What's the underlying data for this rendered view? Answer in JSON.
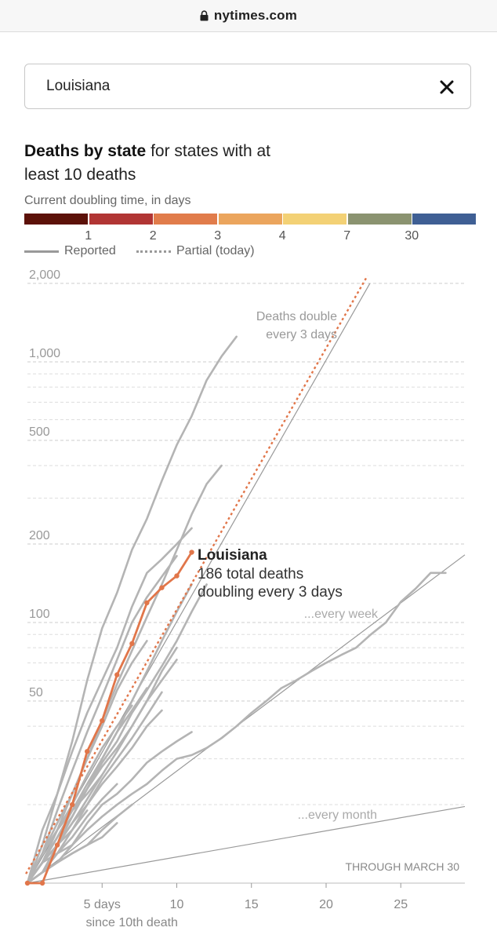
{
  "browser": {
    "url": "nytimes.com"
  },
  "search": {
    "value": "Louisiana"
  },
  "header": {
    "title_bold": "Deaths by state",
    "title_rest": " for states with at least 10 deaths"
  },
  "legend": {
    "doubling_label": "Current doubling time, in days",
    "colors": [
      "#5c1109",
      "#b13534",
      "#e17c4b",
      "#eba55d",
      "#f3d175",
      "#8b9370",
      "#3f5f94"
    ],
    "ticks": [
      "1",
      "2",
      "3",
      "4",
      "7",
      "30"
    ],
    "reported_label": "Reported",
    "partial_label": "Partial (today)"
  },
  "chart_data": {
    "type": "line",
    "x_axis": {
      "ticks": [
        5,
        10,
        15,
        20,
        25
      ],
      "label": "since 10th death",
      "first_tick_suffix": " days",
      "range": [
        0,
        30
      ]
    },
    "y_axis": {
      "scale": "log",
      "range": [
        10,
        2000
      ],
      "tick_labels": [
        {
          "value": 2000,
          "label": "2,000"
        },
        {
          "value": 1000,
          "label": "1,000"
        },
        {
          "value": 500,
          "label": "500"
        },
        {
          "value": 200,
          "label": "200"
        },
        {
          "value": 100,
          "label": "100"
        },
        {
          "value": 50,
          "label": "50"
        }
      ]
    },
    "grid": true,
    "reference_lines": [
      {
        "label": "Deaths double every 3 days",
        "label_lines": [
          "Deaths double",
          "every 3 days"
        ],
        "doubling_days": 3
      },
      {
        "label": "...every week",
        "doubling_days": 7
      },
      {
        "label": "...every month",
        "doubling_days": 30
      }
    ],
    "highlight": {
      "name": "Louisiana",
      "line1": "186 total deaths",
      "line2": "doubling every 3 days",
      "color": "#e1764a",
      "x": [
        0,
        1,
        2,
        3,
        4,
        5,
        6,
        7,
        8,
        9,
        10,
        11
      ],
      "y": [
        10,
        10,
        14,
        20,
        32,
        42,
        63,
        83,
        119,
        136,
        151,
        186
      ],
      "partial_projection_doubling_days": 3
    },
    "other_series": [
      {
        "x": [
          0,
          1,
          2,
          3,
          4,
          5,
          6,
          7,
          8,
          9,
          10,
          11,
          12,
          13,
          14
        ],
        "y": [
          10,
          16,
          22,
          35,
          60,
          95,
          130,
          190,
          250,
          350,
          480,
          620,
          850,
          1050,
          1250
        ]
      },
      {
        "x": [
          0,
          1,
          2,
          3,
          4,
          5,
          6,
          7,
          8,
          9,
          10,
          11
        ],
        "y": [
          10,
          14,
          22,
          32,
          45,
          60,
          80,
          115,
          155,
          175,
          200,
          230
        ]
      },
      {
        "x": [
          0,
          1,
          2,
          3,
          4,
          5,
          6,
          7,
          8,
          9,
          10
        ],
        "y": [
          10,
          13,
          19,
          27,
          38,
          52,
          72,
          100,
          125,
          150,
          180
        ]
      },
      {
        "x": [
          0,
          1,
          2,
          3,
          4,
          5,
          6,
          7,
          8,
          9,
          10,
          11,
          12,
          13,
          14,
          15,
          16,
          17,
          18,
          19,
          20,
          21,
          22,
          23,
          24,
          25,
          26,
          27,
          28
        ],
        "y": [
          10,
          11,
          12,
          14,
          16,
          18,
          20,
          22,
          24,
          27,
          30,
          31,
          33,
          36,
          40,
          45,
          50,
          56,
          60,
          65,
          70,
          75,
          80,
          90,
          100,
          120,
          135,
          155,
          155
        ]
      },
      {
        "x": [
          0,
          1,
          2,
          3,
          4,
          5,
          6,
          7,
          8,
          9,
          10,
          11,
          12
        ],
        "y": [
          10,
          12,
          15,
          19,
          23,
          29,
          35,
          45,
          55,
          68,
          85,
          110,
          140
        ]
      },
      {
        "x": [
          0,
          1,
          2,
          3,
          4,
          5,
          6,
          7,
          8,
          9,
          10
        ],
        "y": [
          10,
          12,
          15,
          18,
          23,
          28,
          33,
          40,
          50,
          60,
          72
        ]
      },
      {
        "x": [
          0,
          1,
          2,
          3,
          4,
          5,
          6,
          7,
          8,
          9
        ],
        "y": [
          10,
          11,
          14,
          17,
          20,
          25,
          30,
          36,
          44,
          54
        ]
      },
      {
        "x": [
          0,
          1,
          2,
          3,
          4,
          5,
          6,
          7,
          8
        ],
        "y": [
          10,
          12,
          15,
          19,
          24,
          30,
          38,
          46,
          56
        ]
      },
      {
        "x": [
          0,
          1,
          2,
          3,
          4,
          5,
          6,
          7,
          8,
          9
        ],
        "y": [
          10,
          11,
          13,
          16,
          20,
          24,
          28,
          33,
          40,
          46
        ]
      },
      {
        "x": [
          0,
          1,
          2,
          3,
          4,
          5,
          6,
          7
        ],
        "y": [
          10,
          12,
          16,
          20,
          26,
          33,
          40,
          48
        ]
      },
      {
        "x": [
          0,
          1,
          2,
          3,
          4,
          5,
          6,
          7,
          8,
          9,
          10,
          11
        ],
        "y": [
          10,
          11,
          12,
          14,
          17,
          20,
          22,
          25,
          29,
          32,
          35,
          38
        ]
      },
      {
        "x": [
          0,
          1,
          2,
          3,
          4,
          5,
          6,
          7,
          8,
          9,
          10
        ],
        "y": [
          10,
          12,
          14,
          17,
          21,
          26,
          32,
          40,
          50,
          65,
          80
        ]
      },
      {
        "x": [
          0,
          1,
          2,
          3,
          4,
          5,
          6
        ],
        "y": [
          10,
          11,
          13,
          15,
          18,
          21,
          24
        ]
      },
      {
        "x": [
          0,
          1,
          2,
          3,
          4,
          5
        ],
        "y": [
          10,
          13,
          16,
          19,
          22,
          26
        ]
      },
      {
        "x": [
          0,
          1,
          2,
          3,
          4
        ],
        "y": [
          10,
          12,
          14,
          16,
          19
        ]
      },
      {
        "x": [
          0,
          1,
          2,
          3,
          4,
          5,
          6,
          7
        ],
        "y": [
          10,
          11,
          12,
          13,
          14,
          16,
          18,
          20
        ]
      },
      {
        "x": [
          0,
          1,
          2,
          3
        ],
        "y": [
          10,
          12,
          13,
          14
        ]
      },
      {
        "x": [
          0,
          1,
          2,
          3,
          4,
          5,
          6,
          7,
          8,
          9,
          10,
          11,
          12,
          13
        ],
        "y": [
          10,
          12,
          16,
          22,
          30,
          42,
          58,
          78,
          105,
          140,
          190,
          260,
          340,
          400
        ]
      },
      {
        "x": [
          0,
          1,
          2,
          3,
          4,
          5,
          6,
          7,
          8
        ],
        "y": [
          10,
          13,
          17,
          22,
          30,
          40,
          55,
          70,
          85
        ]
      },
      {
        "x": [
          0,
          1,
          2,
          3,
          4,
          5,
          6
        ],
        "y": [
          10,
          11,
          12,
          13,
          14,
          15,
          17
        ]
      },
      {
        "x": [
          0,
          1,
          2,
          3,
          4,
          5,
          6,
          7,
          8,
          9,
          10,
          11
        ],
        "y": [
          10,
          12,
          14,
          18,
          23,
          30,
          38,
          50,
          65,
          85,
          110,
          140
        ]
      }
    ],
    "note": "THROUGH MARCH 30"
  }
}
